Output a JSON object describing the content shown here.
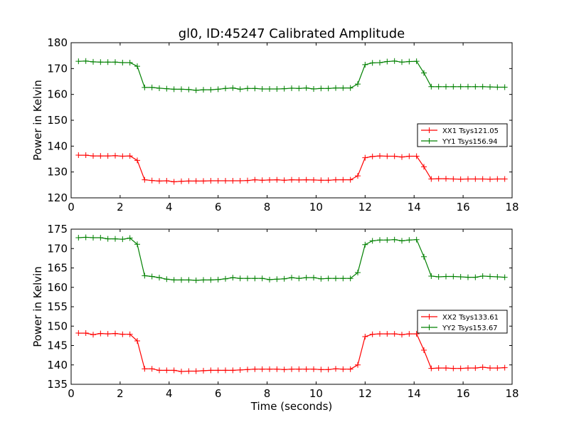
{
  "figure": {
    "title": "gl0, ID:45247 Calibrated Amplitude",
    "xlabel": "Time (seconds)"
  },
  "colors": {
    "xx": "#ff0000",
    "yy": "#008000"
  },
  "chart_data": [
    {
      "type": "line",
      "title": "gl0, ID:45247 Calibrated Amplitude",
      "xlabel": "",
      "ylabel": "Power in Kelvin",
      "xlim": [
        0,
        18
      ],
      "ylim": [
        120,
        180
      ],
      "xticks": [
        0,
        2,
        4,
        6,
        8,
        10,
        12,
        14,
        16,
        18
      ],
      "yticks": [
        120,
        130,
        140,
        150,
        160,
        170,
        180
      ],
      "grid": false,
      "legend": "center-right",
      "x": [
        0.3,
        0.6,
        0.9,
        1.2,
        1.5,
        1.8,
        2.1,
        2.4,
        2.7,
        3.0,
        3.3,
        3.6,
        3.9,
        4.2,
        4.5,
        4.8,
        5.1,
        5.4,
        5.7,
        6.0,
        6.3,
        6.6,
        6.9,
        7.2,
        7.5,
        7.8,
        8.1,
        8.4,
        8.7,
        9.0,
        9.3,
        9.6,
        9.9,
        10.2,
        10.5,
        10.8,
        11.1,
        11.4,
        11.7,
        12.0,
        12.3,
        12.6,
        12.9,
        13.2,
        13.5,
        13.8,
        14.1,
        14.4,
        14.7,
        15.0,
        15.3,
        15.6,
        15.9,
        16.2,
        16.5,
        16.8,
        17.1,
        17.4,
        17.7
      ],
      "series": [
        {
          "name": "XX1 Tsys121.05",
          "color": "#ff0000",
          "values": [
            136.5,
            136.5,
            136.2,
            136.2,
            136.2,
            136.3,
            136.1,
            136.2,
            134.5,
            127.0,
            126.7,
            126.5,
            126.6,
            126.2,
            126.4,
            126.5,
            126.5,
            126.5,
            126.6,
            126.6,
            126.6,
            126.6,
            126.6,
            126.7,
            127.0,
            126.8,
            126.9,
            127.0,
            126.8,
            127.0,
            126.9,
            127.0,
            126.9,
            126.8,
            126.8,
            127.0,
            127.0,
            127.0,
            128.5,
            135.5,
            136.0,
            136.2,
            136.1,
            136.1,
            135.8,
            136.1,
            136.1,
            132.0,
            127.3,
            127.4,
            127.4,
            127.3,
            127.2,
            127.3,
            127.3,
            127.3,
            127.2,
            127.3,
            127.3
          ]
        },
        {
          "name": "YY1 Tsys156.94",
          "color": "#008000",
          "values": [
            172.8,
            172.9,
            172.6,
            172.5,
            172.5,
            172.5,
            172.3,
            172.3,
            170.9,
            162.7,
            162.7,
            162.4,
            162.2,
            162.0,
            162.0,
            161.9,
            161.6,
            161.8,
            161.8,
            162.0,
            162.3,
            162.5,
            162.0,
            162.3,
            162.3,
            162.1,
            162.1,
            162.1,
            162.2,
            162.4,
            162.3,
            162.5,
            162.1,
            162.3,
            162.3,
            162.5,
            162.5,
            162.5,
            164.0,
            171.5,
            172.2,
            172.3,
            172.7,
            172.9,
            172.5,
            172.7,
            172.8,
            168.3,
            163.0,
            163.0,
            163.0,
            163.0,
            163.0,
            163.0,
            163.0,
            163.0,
            162.9,
            162.8,
            162.8
          ]
        }
      ]
    },
    {
      "type": "line",
      "title": "",
      "xlabel": "Time (seconds)",
      "ylabel": "Power in Kelvin",
      "xlim": [
        0,
        18
      ],
      "ylim": [
        135,
        175
      ],
      "xticks": [
        0,
        2,
        4,
        6,
        8,
        10,
        12,
        14,
        16,
        18
      ],
      "yticks": [
        135,
        140,
        145,
        150,
        155,
        160,
        165,
        170,
        175
      ],
      "grid": false,
      "legend": "center-right",
      "x": [
        0.3,
        0.6,
        0.9,
        1.2,
        1.5,
        1.8,
        2.1,
        2.4,
        2.7,
        3.0,
        3.3,
        3.6,
        3.9,
        4.2,
        4.5,
        4.8,
        5.1,
        5.4,
        5.7,
        6.0,
        6.3,
        6.6,
        6.9,
        7.2,
        7.5,
        7.8,
        8.1,
        8.4,
        8.7,
        9.0,
        9.3,
        9.6,
        9.9,
        10.2,
        10.5,
        10.8,
        11.1,
        11.4,
        11.7,
        12.0,
        12.3,
        12.6,
        12.9,
        13.2,
        13.5,
        13.8,
        14.1,
        14.4,
        14.7,
        15.0,
        15.3,
        15.6,
        15.9,
        16.2,
        16.5,
        16.8,
        17.1,
        17.4,
        17.7
      ],
      "series": [
        {
          "name": "XX2 Tsys133.61",
          "color": "#ff0000",
          "values": [
            148.2,
            148.2,
            147.8,
            148.1,
            148.0,
            148.1,
            147.9,
            147.9,
            146.2,
            139.0,
            139.0,
            138.6,
            138.6,
            138.6,
            138.3,
            138.4,
            138.4,
            138.5,
            138.6,
            138.6,
            138.6,
            138.6,
            138.7,
            138.8,
            138.9,
            138.9,
            138.9,
            138.9,
            138.8,
            138.9,
            138.9,
            138.9,
            138.9,
            138.8,
            138.8,
            139.0,
            138.9,
            138.9,
            140.0,
            147.3,
            147.9,
            148.0,
            148.0,
            148.0,
            147.8,
            148.0,
            148.0,
            143.8,
            139.1,
            139.2,
            139.2,
            139.1,
            139.1,
            139.2,
            139.2,
            139.4,
            139.2,
            139.2,
            139.3
          ]
        },
        {
          "name": "YY2 Tsys153.67",
          "color": "#008000",
          "values": [
            172.8,
            172.9,
            172.8,
            172.8,
            172.5,
            172.5,
            172.4,
            172.7,
            171.1,
            163.0,
            162.8,
            162.5,
            162.1,
            161.9,
            161.9,
            161.9,
            161.8,
            161.9,
            161.9,
            162.0,
            162.2,
            162.5,
            162.3,
            162.3,
            162.3,
            162.3,
            162.0,
            162.1,
            162.2,
            162.5,
            162.3,
            162.5,
            162.5,
            162.2,
            162.3,
            162.3,
            162.3,
            162.3,
            163.8,
            171.0,
            172.0,
            172.2,
            172.2,
            172.3,
            172.0,
            172.2,
            172.3,
            167.9,
            162.9,
            162.7,
            162.8,
            162.8,
            162.7,
            162.6,
            162.6,
            162.9,
            162.8,
            162.7,
            162.6
          ]
        }
      ]
    }
  ]
}
